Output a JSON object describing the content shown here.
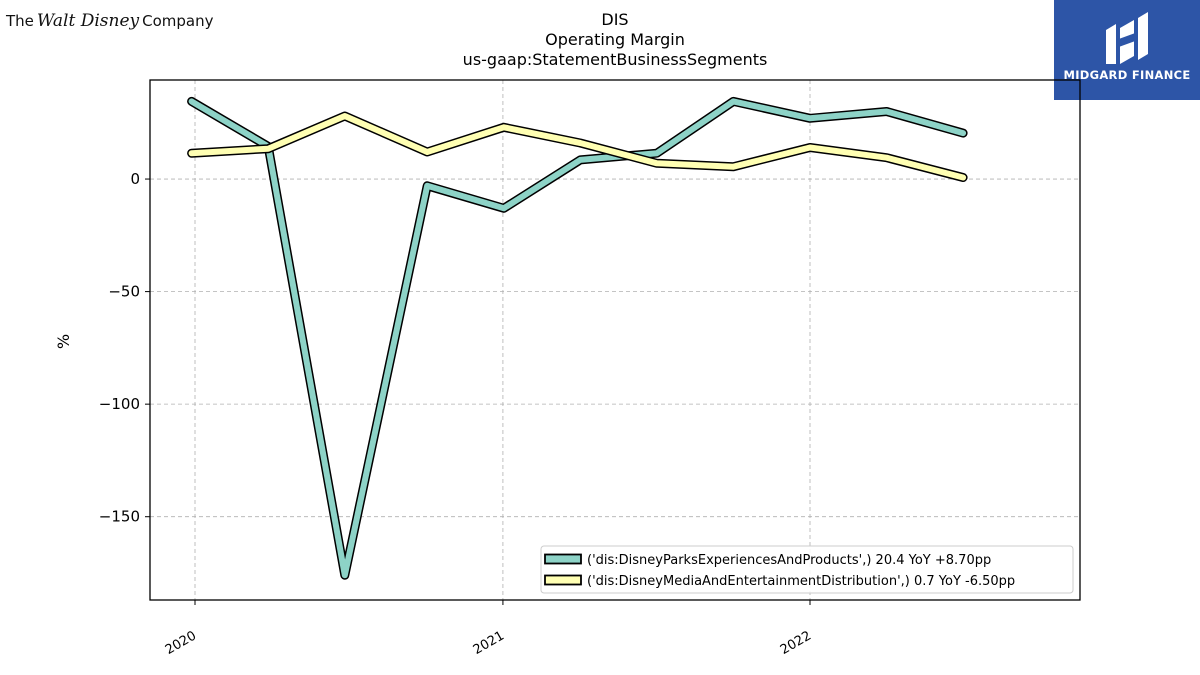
{
  "branding": {
    "left_logo_parts": [
      "The",
      "Walt Disney",
      "Company"
    ],
    "right_logo_text": "MIDGARD FINANCE",
    "right_logo_color": "#2d55a7"
  },
  "chart_data": {
    "type": "line",
    "title": "DIS",
    "subtitle": "Operating Margin",
    "subtitle2": "us-gaap:StatementBusinessSegments",
    "xlabel": "",
    "ylabel": "%",
    "x": [
      "2019-12-28",
      "2020-03-28",
      "2020-06-27",
      "2020-10-03",
      "2021-01-02",
      "2021-04-03",
      "2021-07-03",
      "2021-10-02",
      "2022-01-01",
      "2022-04-02",
      "2022-07-02",
      "2022-10-01"
    ],
    "x_ticks": [
      "2020",
      "2021",
      "2022"
    ],
    "y_ticks": [
      0,
      -50,
      -100,
      -150
    ],
    "ylim": [
      -187,
      44
    ],
    "grid": true,
    "legend_position": "lower-right",
    "series": [
      {
        "name": "('dis:DisneyParksExperiencesAndProducts',) 20.4 YoY +8.70pp",
        "color": "#8dd3c7",
        "values": [
          34.5,
          14.5,
          -176,
          -3,
          -13,
          8.5,
          11.5,
          34.5,
          27,
          30,
          20.4,
          null
        ]
      },
      {
        "name": "('dis:DisneyMediaAndEntertainmentDistribution',) 0.7 YoY -6.50pp",
        "color": "#ffffb3",
        "values": [
          11.5,
          13.5,
          28,
          12,
          23,
          16,
          7,
          5.5,
          14,
          9.5,
          0.7,
          null
        ]
      }
    ]
  }
}
